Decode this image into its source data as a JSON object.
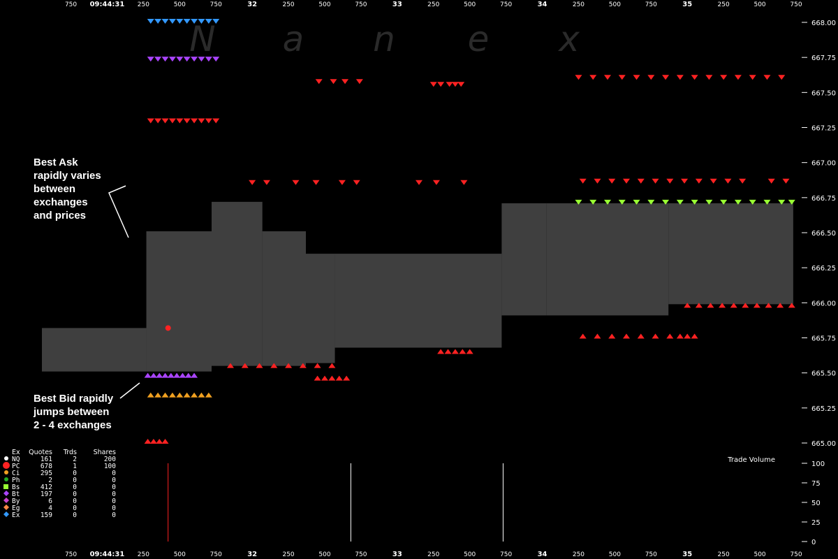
{
  "chart_data": {
    "type": "scatter",
    "title": "",
    "watermark": [
      "N",
      "a",
      "n",
      "e",
      "x"
    ],
    "y_axis": {
      "ticks": [
        "668.00",
        "667.75",
        "667.50",
        "667.25",
        "667.00",
        "666.75",
        "666.50",
        "666.25",
        "666.00",
        "665.75",
        "665.50",
        "665.25",
        "665.00"
      ],
      "ylim": [
        665.0,
        668.0
      ]
    },
    "x_axis": {
      "start_label": "09:44:31",
      "tick_labels": [
        "750",
        "09:44:31",
        "250",
        "500",
        "750",
        "32",
        "250",
        "500",
        "750",
        "33",
        "250",
        "500",
        "750",
        "34",
        "250",
        "500",
        "750",
        "35",
        "250",
        "500",
        "750"
      ],
      "major_labels": [
        "09:44:31",
        "32",
        "33",
        "34",
        "35"
      ],
      "xlim_seconds": [
        30.55,
        35.75
      ]
    },
    "spread_band": [
      {
        "t0": 30.55,
        "t1": 31.27,
        "bid": 665.51,
        "ask": 665.82
      },
      {
        "t0": 31.27,
        "t1": 31.72,
        "bid": 665.51,
        "ask": 666.51
      },
      {
        "t0": 31.72,
        "t1": 32.07,
        "bid": 665.55,
        "ask": 666.72
      },
      {
        "t0": 32.07,
        "t1": 32.37,
        "bid": 665.55,
        "ask": 666.51
      },
      {
        "t0": 32.37,
        "t1": 32.57,
        "bid": 665.57,
        "ask": 666.35
      },
      {
        "t0": 32.57,
        "t1": 33.72,
        "bid": 665.68,
        "ask": 666.35
      },
      {
        "t0": 33.72,
        "t1": 34.03,
        "bid": 665.91,
        "ask": 666.71
      },
      {
        "t0": 34.03,
        "t1": 34.87,
        "bid": 665.91,
        "ask": 666.71
      },
      {
        "t0": 34.87,
        "t1": 35.73,
        "bid": 665.99,
        "ask": 666.71
      }
    ],
    "series": [
      {
        "name": "NQ",
        "color": "#ffffff"
      },
      {
        "name": "PC",
        "color": "#ff2222"
      },
      {
        "name": "Ci",
        "color": "#f0a020"
      },
      {
        "name": "Ph",
        "color": "#22aa22"
      },
      {
        "name": "Bs",
        "color": "#99ff33"
      },
      {
        "name": "Bt",
        "color": "#aa44ff"
      },
      {
        "name": "By",
        "color": "#cc44cc"
      },
      {
        "name": "Eg",
        "color": "#ff8844"
      },
      {
        "name": "Ex",
        "color": "#3399ff"
      }
    ],
    "ask_quotes": [
      {
        "ex": "PC",
        "t": [
          31.3,
          31.35,
          31.4,
          31.45,
          31.5,
          31.55,
          31.6,
          31.65,
          31.7,
          31.75
        ],
        "price": 667.29
      },
      {
        "ex": "PC",
        "t": [
          34.25,
          34.35,
          34.45,
          34.55,
          34.65,
          34.75,
          34.85,
          34.95,
          35.05,
          35.15,
          35.25,
          35.35,
          35.45,
          35.55,
          35.65
        ],
        "price": 667.6
      },
      {
        "ex": "PC",
        "t": [
          34.28,
          34.38,
          34.48,
          34.58,
          34.68,
          34.78,
          34.88,
          34.98,
          35.08,
          35.18,
          35.28,
          35.38,
          35.58,
          35.68
        ],
        "price": 666.86
      },
      {
        "ex": "Bt",
        "t": [
          31.3,
          31.35,
          31.4,
          31.45,
          31.5,
          31.55,
          31.6,
          31.65,
          31.7,
          31.75
        ],
        "price": 667.73
      },
      {
        "ex": "Ex",
        "t": [
          31.3,
          31.35,
          31.4,
          31.45,
          31.5,
          31.55,
          31.6,
          31.65,
          31.7,
          31.75
        ],
        "price": 668.0
      },
      {
        "ex": "Bs",
        "t": [
          34.25,
          34.35,
          34.45,
          34.55,
          34.65,
          34.75,
          34.85,
          34.95,
          35.05,
          35.15,
          35.25,
          35.35,
          35.45,
          35.55,
          35.65,
          35.72
        ],
        "price": 666.71
      },
      {
        "ex": "PC",
        "t": [
          32.0,
          32.1,
          32.3,
          32.44,
          32.62,
          32.72,
          33.15,
          33.27,
          33.46
        ],
        "price": 666.85
      },
      {
        "ex": "PC",
        "t": [
          32.46,
          32.56,
          32.64,
          32.74
        ],
        "price": 667.57
      },
      {
        "ex": "PC",
        "t": [
          33.25,
          33.3,
          33.36,
          33.4,
          33.44
        ],
        "price": 667.55
      }
    ],
    "bid_quotes": [
      {
        "ex": "PC",
        "t": [
          34.28,
          34.38,
          34.48,
          34.58,
          34.68,
          34.78,
          34.88,
          34.95,
          35.0,
          35.05
        ],
        "price": 665.77
      },
      {
        "ex": "PC",
        "t": [
          35.0,
          35.08,
          35.16,
          35.24,
          35.32,
          35.4,
          35.48,
          35.56,
          35.64,
          35.72
        ],
        "price": 665.99
      },
      {
        "ex": "Ci",
        "t": [
          31.3,
          31.35,
          31.4,
          31.45,
          31.5,
          31.55,
          31.6,
          31.65,
          31.7
        ],
        "price": 665.35
      },
      {
        "ex": "Bt",
        "t": [
          31.28,
          31.32,
          31.36,
          31.4,
          31.44,
          31.48,
          31.52,
          31.56,
          31.6
        ],
        "price": 665.49
      },
      {
        "ex": "PC",
        "t": [
          31.28,
          31.32,
          31.36,
          31.4
        ],
        "price": 665.02
      },
      {
        "ex": "PC",
        "t": [
          31.85,
          31.95,
          32.05,
          32.15,
          32.25,
          32.35,
          32.45,
          32.55
        ],
        "price": 665.56
      },
      {
        "ex": "PC",
        "t": [
          32.45,
          32.5,
          32.55,
          32.6,
          32.65
        ],
        "price": 665.47
      },
      {
        "ex": "PC",
        "t": [
          33.3,
          33.35,
          33.4,
          33.45,
          33.5
        ],
        "price": 665.66
      }
    ],
    "trades": [
      {
        "ex": "PC",
        "t": 31.42,
        "price": 665.82
      }
    ],
    "annotations": [
      {
        "lines": [
          "Best Ask",
          "rapidly varies",
          "between",
          "exchanges",
          "and prices"
        ]
      },
      {
        "lines": [
          "Best Bid rapidly",
          "jumps between",
          "2 - 4 exchanges"
        ]
      }
    ],
    "legend": {
      "headers": [
        "Ex",
        "Quotes",
        "Trds",
        "Shares"
      ],
      "rows": [
        {
          "ex": "NQ",
          "quotes": "161",
          "trds": "2",
          "shares": "200",
          "color": "#ffffff",
          "shape": "dot"
        },
        {
          "ex": "PC",
          "quotes": "678",
          "trds": "1",
          "shares": "100",
          "color": "#ff2222",
          "shape": "big-dot"
        },
        {
          "ex": "Ci",
          "quotes": "295",
          "trds": "0",
          "shares": "0",
          "color": "#f0a020",
          "shape": "dot"
        },
        {
          "ex": "Ph",
          "quotes": "2",
          "trds": "0",
          "shares": "0",
          "color": "#22aa22",
          "shape": "dot"
        },
        {
          "ex": "Bs",
          "quotes": "412",
          "trds": "0",
          "shares": "0",
          "color": "#99ff33",
          "shape": "square"
        },
        {
          "ex": "Bt",
          "quotes": "197",
          "trds": "0",
          "shares": "0",
          "color": "#aa44ff",
          "shape": "diamond"
        },
        {
          "ex": "By",
          "quotes": "6",
          "trds": "0",
          "shares": "0",
          "color": "#cc44cc",
          "shape": "diamond"
        },
        {
          "ex": "Eg",
          "quotes": "4",
          "trds": "0",
          "shares": "0",
          "color": "#ff8844",
          "shape": "diamond"
        },
        {
          "ex": "Ex",
          "quotes": "159",
          "trds": "0",
          "shares": "0",
          "color": "#3399ff",
          "shape": "diamond"
        }
      ]
    },
    "volume_panel": {
      "title": "Trade Volume",
      "y_ticks": [
        "100",
        "75",
        "50",
        "25",
        "0"
      ],
      "ylim": [
        0,
        100
      ],
      "bars": [
        {
          "t": 31.42,
          "shares": 100,
          "color": "#ff2222"
        },
        {
          "t": 32.68,
          "shares": 100,
          "color": "#ffffff"
        },
        {
          "t": 33.73,
          "shares": 100,
          "color": "#ffffff"
        }
      ]
    }
  }
}
